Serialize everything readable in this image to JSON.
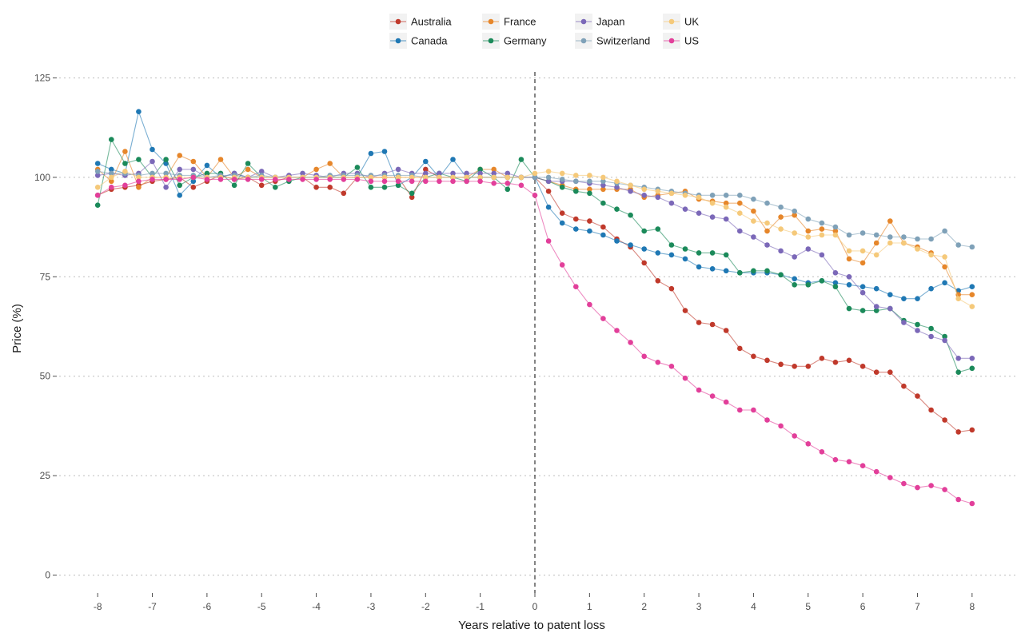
{
  "chart_data": {
    "type": "line",
    "title": "",
    "xlabel": "Years relative to patent loss",
    "ylabel": "Price (%)",
    "xlim": [
      -8,
      8
    ],
    "ylim": [
      0,
      125
    ],
    "x_ticks": [
      -8,
      -7,
      -6,
      -5,
      -4,
      -3,
      -2,
      -1,
      0,
      1,
      2,
      3,
      4,
      5,
      6,
      7,
      8
    ],
    "y_ticks": [
      0,
      25,
      50,
      75,
      100,
      125
    ],
    "grid": "horizontal dotted",
    "reference_line": {
      "x": 0,
      "style": "dashed"
    },
    "legend_position": "top",
    "x": [
      -8,
      -7.75,
      -7.5,
      -7.25,
      -7,
      -6.75,
      -6.5,
      -6.25,
      -6,
      -5.75,
      -5.5,
      -5.25,
      -5,
      -4.75,
      -4.5,
      -4.25,
      -4,
      -3.75,
      -3.5,
      -3.25,
      -3,
      -2.75,
      -2.5,
      -2.25,
      -2,
      -1.75,
      -1.5,
      -1.25,
      -1,
      -0.75,
      -0.5,
      -0.25,
      0,
      0.25,
      0.5,
      0.75,
      1,
      1.25,
      1.5,
      1.75,
      2,
      2.25,
      2.5,
      2.75,
      3,
      3.25,
      3.5,
      3.75,
      4,
      4.25,
      4.5,
      4.75,
      5,
      5.25,
      5.5,
      5.75,
      6,
      6.25,
      6.5,
      6.75,
      7,
      7.25,
      7.5,
      7.75,
      8
    ],
    "series": [
      {
        "name": "Australia",
        "color": "#c0392b",
        "values": [
          95.5,
          97,
          97.5,
          98,
          99,
          99.5,
          100,
          97.5,
          99,
          100.5,
          99.5,
          100,
          98,
          99,
          100,
          100,
          97.5,
          97.5,
          96,
          100,
          100,
          100,
          100,
          95,
          102,
          100,
          100,
          100,
          100,
          100,
          100,
          100,
          100,
          96.5,
          91,
          89.5,
          89,
          87.5,
          84.5,
          82.5,
          78.5,
          74,
          72,
          66.5,
          63.5,
          63,
          61.5,
          57,
          55,
          54,
          53,
          52.5,
          52.5,
          54.5,
          53.5,
          54,
          52.5,
          51,
          51,
          47.5,
          45,
          41.5,
          39,
          36,
          36.5
        ]
      },
      {
        "name": "Canada",
        "color": "#1f78b4",
        "values": [
          103.5,
          102,
          101,
          116.5,
          107,
          103.5,
          95.5,
          99,
          103,
          100,
          101,
          100,
          100,
          100,
          100,
          100,
          100,
          100,
          100,
          100,
          106,
          106.5,
          98,
          100,
          104,
          100,
          104.5,
          100,
          100,
          100,
          100,
          100,
          100,
          92.5,
          88.5,
          87,
          86.5,
          85.5,
          84,
          83,
          82,
          81,
          80.5,
          79.5,
          77.5,
          77,
          76.5,
          76,
          76,
          76,
          75.5,
          74.5,
          73.5,
          74,
          73.5,
          73,
          72.5,
          72,
          70.5,
          69.5,
          69.5,
          72,
          73.5,
          71.5,
          72.5
        ]
      },
      {
        "name": "France",
        "color": "#e6862a",
        "values": [
          102,
          99,
          106.5,
          97.5,
          100,
          100,
          105.5,
          104,
          100,
          104.5,
          100,
          102,
          100,
          100,
          100,
          100,
          102,
          103.5,
          100,
          100,
          100,
          100,
          100,
          100,
          100,
          100,
          100,
          100,
          102,
          102,
          100,
          100,
          100,
          99,
          98,
          97,
          97,
          97,
          97,
          97,
          95,
          95.5,
          96,
          96.5,
          94.5,
          94,
          93.5,
          93.5,
          91.5,
          86.5,
          90,
          90.5,
          86.5,
          87,
          86.5,
          79.5,
          78.5,
          83.5,
          89,
          83.5,
          82.5,
          81,
          77.5,
          70.5,
          70.5
        ]
      },
      {
        "name": "Germany",
        "color": "#1b8a5a",
        "values": [
          93,
          109.5,
          103.5,
          104.5,
          100,
          104.5,
          98,
          100,
          101,
          101,
          98,
          103.5,
          100,
          97.5,
          99,
          100,
          100,
          100,
          100,
          102.5,
          97.5,
          97.5,
          98,
          96,
          100,
          101,
          100,
          99,
          102,
          100,
          97,
          104.5,
          100,
          99,
          97.5,
          96.5,
          96,
          93.5,
          92,
          90.5,
          86.5,
          87,
          83,
          82,
          81,
          81,
          80.5,
          76,
          76.5,
          76.5,
          75.5,
          73,
          73,
          74,
          72.5,
          67,
          66.5,
          66.5,
          67,
          64,
          63,
          62,
          60,
          51,
          52
        ]
      },
      {
        "name": "Japan",
        "color": "#7b68b8",
        "values": [
          100.5,
          101,
          100.5,
          101,
          104,
          97.5,
          102,
          102,
          100,
          100,
          101,
          100,
          101.5,
          100,
          100.5,
          101,
          100.5,
          100,
          101,
          101,
          100,
          101,
          102,
          101,
          101,
          101,
          101,
          101,
          101,
          101,
          101,
          100,
          100,
          99,
          99,
          99,
          98.5,
          98,
          97.5,
          96.5,
          95.5,
          95,
          93.5,
          92,
          91,
          90,
          89.5,
          86.5,
          85,
          83,
          81.5,
          80,
          82,
          80.5,
          76,
          75,
          71,
          67.5,
          67,
          63.5,
          61.5,
          60,
          59,
          54.5,
          54.5
        ]
      },
      {
        "name": "Switzerland",
        "color": "#7fa1b8",
        "values": [
          101.5,
          101,
          101,
          100.5,
          101,
          101,
          100.5,
          100.5,
          100,
          100.5,
          100.5,
          100,
          100.5,
          100,
          100,
          100,
          100,
          100.5,
          100.5,
          100.5,
          100.5,
          100.5,
          100.5,
          100.5,
          100,
          100,
          100,
          100,
          100,
          100,
          100,
          100,
          100,
          100,
          99.5,
          99,
          99,
          99,
          98.5,
          98,
          97.5,
          97,
          96.5,
          96,
          95.5,
          95.5,
          95.5,
          95.5,
          94.5,
          93.5,
          92.5,
          91.5,
          89.5,
          88.5,
          87.5,
          85.5,
          86,
          85.5,
          85,
          85,
          84.5,
          84.5,
          86.5,
          83,
          82.5
        ]
      },
      {
        "name": "UK",
        "color": "#f5c97a",
        "values": [
          97.5,
          100,
          101.5,
          100,
          100,
          100,
          100,
          100,
          100,
          100,
          100,
          100,
          100,
          100,
          100,
          100,
          100,
          100,
          100,
          100,
          100,
          100,
          100,
          100,
          100,
          100,
          100,
          100,
          100,
          100,
          100,
          100,
          101,
          101.5,
          101,
          100.5,
          100.5,
          100,
          99,
          98,
          97,
          96.5,
          96,
          95.5,
          95,
          93.5,
          92.5,
          91,
          89,
          88.5,
          87,
          86,
          85,
          85.5,
          85.5,
          81.5,
          81.5,
          80.5,
          83.5,
          83.5,
          82,
          80.5,
          80,
          69.5,
          67.5
        ]
      },
      {
        "name": "US",
        "color": "#e23f9a",
        "values": [
          95.5,
          97.5,
          98,
          99,
          99.5,
          99.5,
          99.5,
          100,
          99.5,
          99.5,
          99.5,
          99.5,
          99.5,
          99.5,
          99.5,
          99.5,
          99.5,
          99.5,
          99.5,
          99.5,
          99,
          99,
          99,
          99,
          99,
          99,
          99,
          99,
          99,
          98.5,
          98.5,
          98,
          95.5,
          84,
          78,
          72.5,
          68,
          64.5,
          61.5,
          58.5,
          55,
          53.5,
          52.5,
          49.5,
          46.5,
          45,
          43.5,
          41.5,
          41.5,
          39,
          37.5,
          35,
          33,
          31,
          29,
          28.5,
          27.5,
          26,
          24.5,
          23,
          22,
          22.5,
          21.5,
          19,
          18
        ]
      }
    ]
  }
}
